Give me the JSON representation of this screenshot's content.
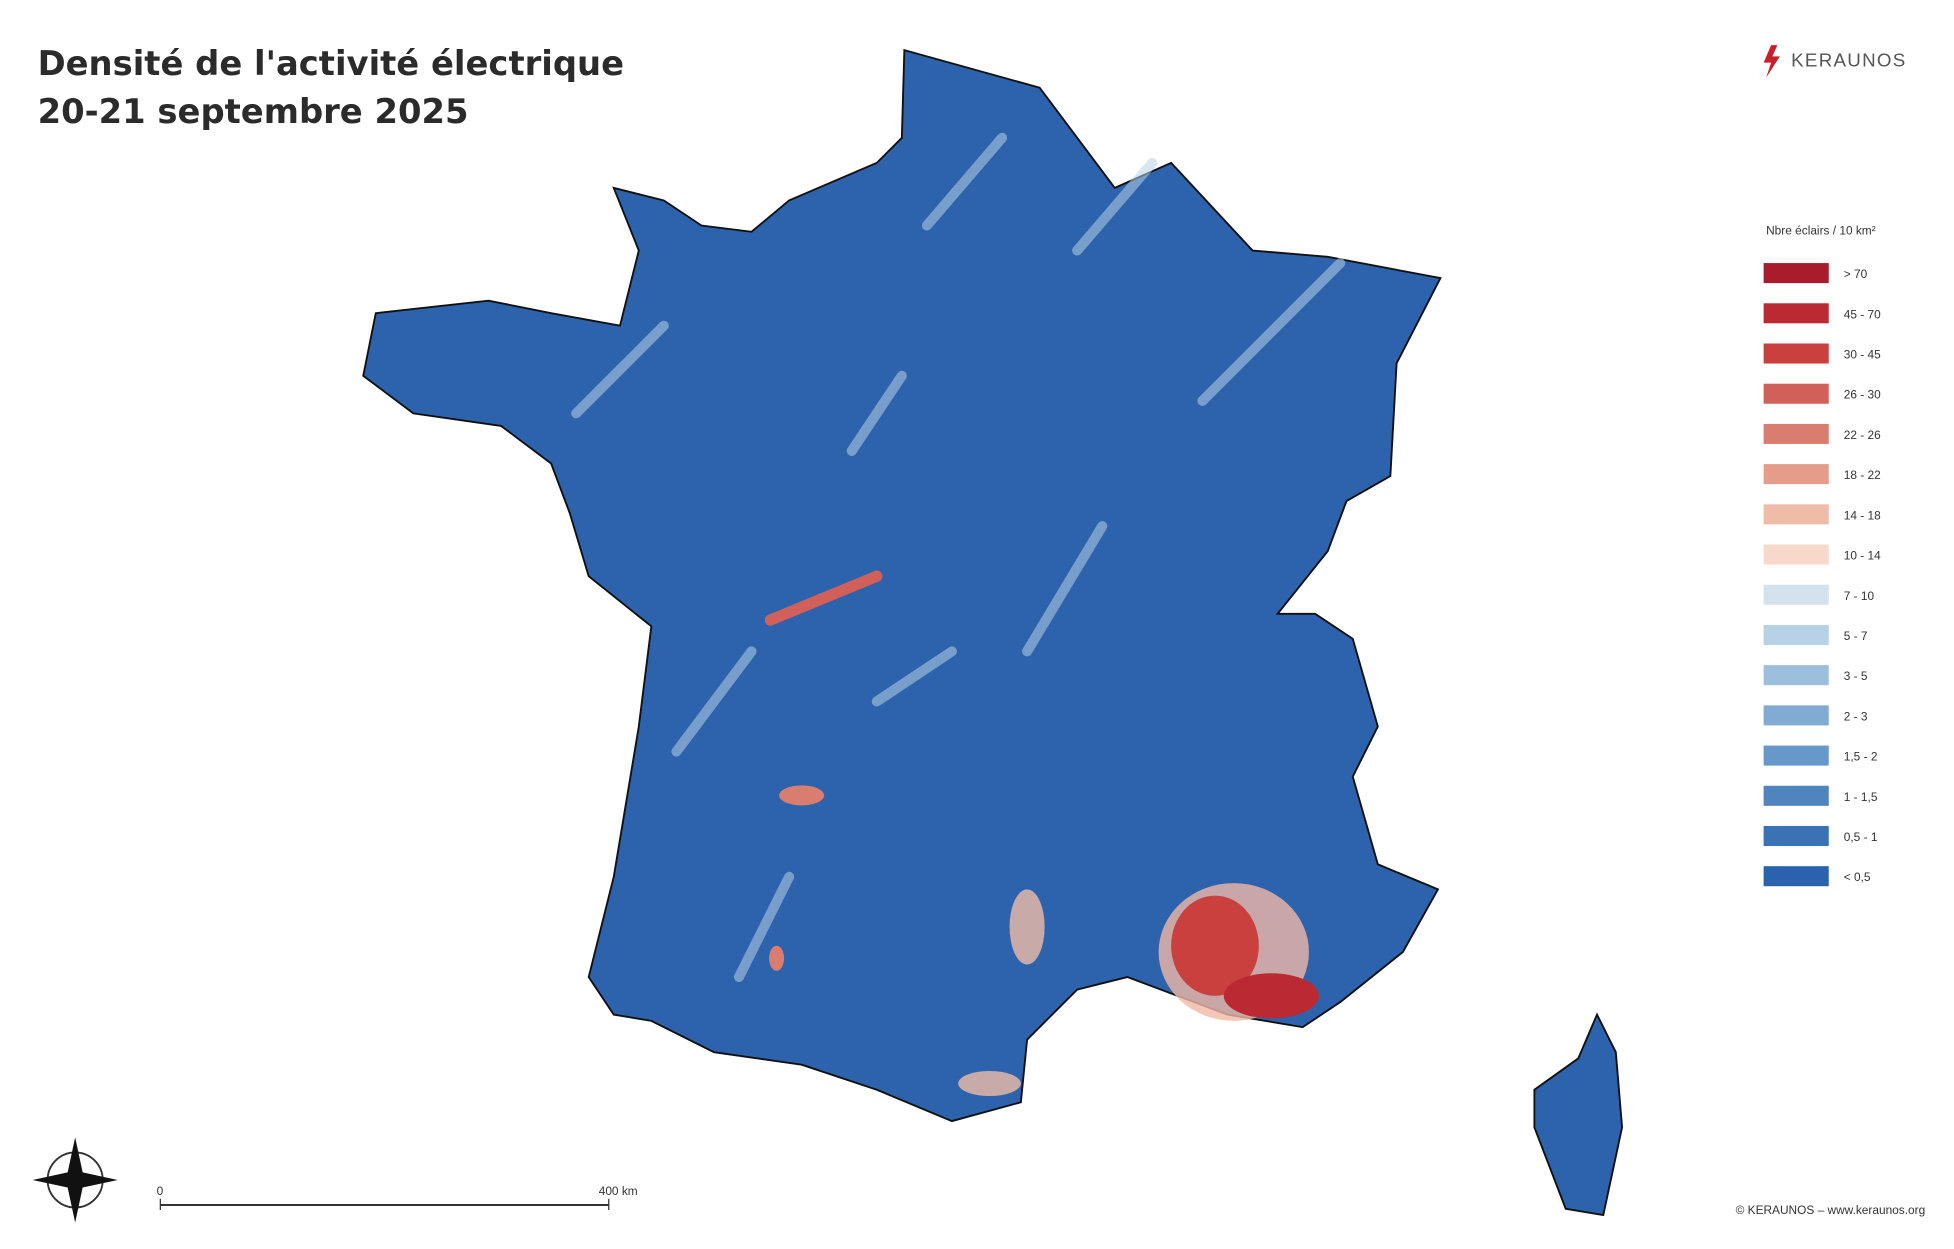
{
  "header": {
    "title": "Densité de l'activité électrique",
    "subtitle": "20-21 septembre 2025",
    "logo": "KERAUNOS"
  },
  "legend": {
    "title": "Nbre éclairs / 10 km²",
    "items": [
      {
        "label": "> 70",
        "color": "#a81c2b"
      },
      {
        "label": "45 - 70",
        "color": "#bb2a33"
      },
      {
        "label": "30 - 45",
        "color": "#c9403f"
      },
      {
        "label": "26 - 30",
        "color": "#d2605a"
      },
      {
        "label": "22 - 26",
        "color": "#d97d6e"
      },
      {
        "label": "18 - 22",
        "color": "#e59c8a"
      },
      {
        "label": "14 - 18",
        "color": "#efbca8"
      },
      {
        "label": "10 - 14",
        "color": "#f8d8cb"
      },
      {
        "label": "7 - 10",
        "color": "#d3e2ed"
      },
      {
        "label": "5 - 7",
        "color": "#b7d1e6"
      },
      {
        "label": "3 - 5",
        "color": "#9bbfdd"
      },
      {
        "label": "2 - 3",
        "color": "#80acd3"
      },
      {
        "label": "1,5 - 2",
        "color": "#6699c9"
      },
      {
        "label": "1 - 1,5",
        "color": "#4f84bf"
      },
      {
        "label": "0,5 - 1",
        "color": "#3a72b5"
      },
      {
        "label": "< 0,5",
        "color": "#2a62ad"
      }
    ]
  },
  "scale_bar": {
    "start": "0",
    "end": "400 km"
  },
  "footer": {
    "copyright": "© KERAUNOS – www.keraunos.org"
  }
}
